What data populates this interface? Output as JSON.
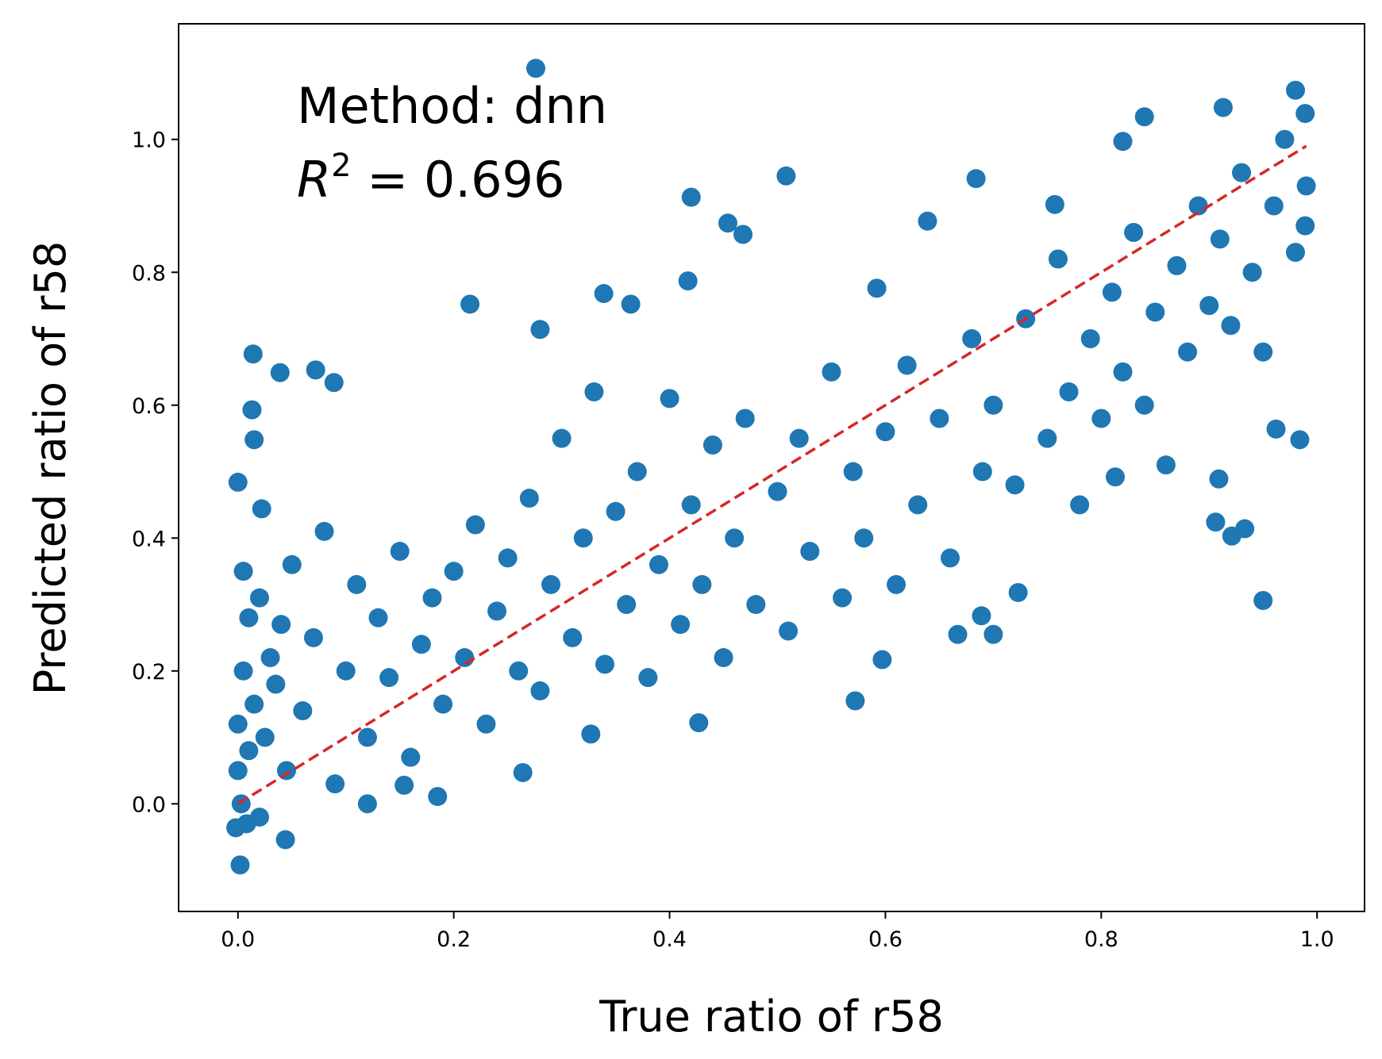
{
  "chart_data": {
    "type": "scatter",
    "x_label": "True ratio of r58",
    "y_label": "Predicted ratio of r58",
    "annotation": {
      "method": "Method: dnn",
      "r2": {
        "symbol": "R",
        "exponent": "2",
        "text": " = 0.696"
      }
    },
    "color": "#1f77b4",
    "x": [
      0.276,
      0.014,
      0.039,
      0.072,
      0.089,
      0,
      0.013,
      0.015,
      0.022,
      0.28,
      0.215,
      0.339,
      0.364,
      0.417,
      0.42,
      0.508,
      0.454,
      0.468,
      0.684,
      0.639,
      0.592,
      0.757,
      0.82,
      0.84,
      0.913,
      0.98,
      0.989,
      0.989,
      0.962,
      0.984,
      0.95,
      0.906,
      0.933,
      0.921,
      0.909,
      0.813,
      0.264,
      0.185,
      0.154,
      0.327,
      0.427,
      0.572,
      0.597,
      0.667,
      0.7,
      0.689,
      0.723,
      0.002,
      0.044,
      -0.002,
      0,
      0,
      0.005,
      0.01,
      0.003,
      0.008,
      0.015,
      0.02,
      0.025,
      0.03,
      0.01,
      0.005,
      0.02,
      0.035,
      0.04,
      0.045,
      0.05,
      0.06,
      0.07,
      0.08,
      0.09,
      0.1,
      0.11,
      0.12,
      0.13,
      0.14,
      0.15,
      0.16,
      0.17,
      0.18,
      0.19,
      0.2,
      0.21,
      0.22,
      0.23,
      0.24,
      0.25,
      0.26,
      0.27,
      0.28,
      0.29,
      0.3,
      0.31,
      0.32,
      0.33,
      0.34,
      0.35,
      0.36,
      0.37,
      0.38,
      0.39,
      0.4,
      0.41,
      0.42,
      0.43,
      0.44,
      0.45,
      0.46,
      0.47,
      0.48,
      0.5,
      0.51,
      0.52,
      0.53,
      0.55,
      0.56,
      0.57,
      0.58,
      0.6,
      0.61,
      0.62,
      0.63,
      0.65,
      0.66,
      0.68,
      0.69,
      0.7,
      0.72,
      0.73,
      0.75,
      0.76,
      0.77,
      0.78,
      0.79,
      0.8,
      0.81,
      0.82,
      0.83,
      0.84,
      0.85,
      0.86,
      0.87,
      0.88,
      0.89,
      0.9,
      0.91,
      0.92,
      0.93,
      0.94,
      0.95,
      0.96,
      0.97,
      0.98,
      0.99,
      0.12
    ],
    "values": [
      1.107,
      0.677,
      0.649,
      0.653,
      0.634,
      0.484,
      0.593,
      0.548,
      0.444,
      0.714,
      0.752,
      0.768,
      0.752,
      0.787,
      0.913,
      0.945,
      0.874,
      0.857,
      0.941,
      0.877,
      0.776,
      0.902,
      0.997,
      1.034,
      1.048,
      1.074,
      1.039,
      0.87,
      0.564,
      0.548,
      0.306,
      0.424,
      0.414,
      0.403,
      0.489,
      0.492,
      0.047,
      0.011,
      0.028,
      0.105,
      0.122,
      0.155,
      0.217,
      0.255,
      0.255,
      0.283,
      0.318,
      -0.092,
      -0.054,
      -0.036,
      0.05,
      0.12,
      0.2,
      0.28,
      0,
      -0.03,
      0.15,
      0.31,
      0.1,
      0.22,
      0.08,
      0.35,
      -0.02,
      0.18,
      0.27,
      0.05,
      0.36,
      0.14,
      0.25,
      0.41,
      0.03,
      0.2,
      0.33,
      0.1,
      0.28,
      0.19,
      0.38,
      0.07,
      0.24,
      0.31,
      0.15,
      0.35,
      0.22,
      0.42,
      0.12,
      0.29,
      0.37,
      0.2,
      0.46,
      0.17,
      0.33,
      0.55,
      0.25,
      0.4,
      0.62,
      0.21,
      0.44,
      0.3,
      0.5,
      0.19,
      0.36,
      0.61,
      0.27,
      0.45,
      0.33,
      0.54,
      0.22,
      0.4,
      0.58,
      0.3,
      0.47,
      0.26,
      0.55,
      0.38,
      0.65,
      0.31,
      0.5,
      0.4,
      0.56,
      0.33,
      0.66,
      0.45,
      0.58,
      0.37,
      0.7,
      0.5,
      0.6,
      0.48,
      0.73,
      0.55,
      0.82,
      0.62,
      0.45,
      0.7,
      0.58,
      0.77,
      0.65,
      0.86,
      0.6,
      0.74,
      0.51,
      0.81,
      0.68,
      0.9,
      0.75,
      0.85,
      0.72,
      0.95,
      0.8,
      0.68,
      0.9,
      1.0,
      0.83,
      0.93,
      0.0
    ],
    "reference_line": {
      "color": "#d62728",
      "dashed": true,
      "x": [
        0,
        0.99
      ],
      "y": [
        0,
        0.99
      ]
    },
    "xlim": [
      -0.055,
      1.044
    ],
    "ylim": [
      -0.162,
      1.174
    ],
    "xticks": [
      {
        "value": 0,
        "label": "0.0"
      },
      0.2,
      0.4,
      0.6,
      0.8,
      {
        "value": 1,
        "label": "1.0"
      }
    ],
    "yticks": [
      {
        "value": 0,
        "label": "0.0"
      },
      0.2,
      0.4,
      0.6,
      0.8,
      {
        "value": 1,
        "label": "1.0"
      }
    ],
    "grid": false
  }
}
